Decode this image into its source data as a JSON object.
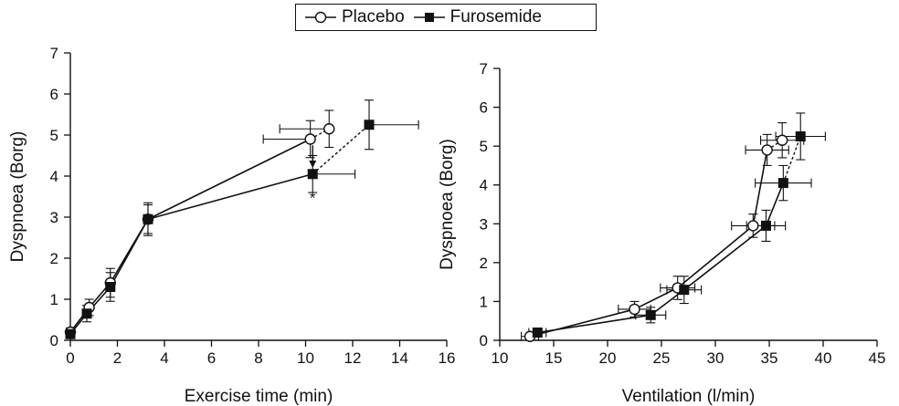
{
  "legend": [
    {
      "label": "Placebo",
      "marker": "open-circle"
    },
    {
      "label": "Furosemide",
      "marker": "filled-square"
    }
  ],
  "chart_data": [
    {
      "type": "line",
      "xlabel": "Exercise time (min)",
      "ylabel": "Dyspnoea (Borg)",
      "xlim": [
        0,
        16
      ],
      "ylim": [
        0,
        7
      ],
      "xticks": [
        0,
        2,
        4,
        6,
        8,
        10,
        12,
        14,
        16
      ],
      "yticks": [
        0,
        1,
        2,
        3,
        4,
        5,
        6,
        7
      ],
      "grid": false,
      "series": [
        {
          "name": "Placebo",
          "marker": "circle",
          "fill": "#ffffff",
          "points": [
            {
              "x": 0,
              "y": 0.2,
              "yerr": 0.1
            },
            {
              "x": 0.8,
              "y": 0.8,
              "yerr": 0.2
            },
            {
              "x": 1.7,
              "y": 1.4,
              "yerr": 0.35
            },
            {
              "x": 3.3,
              "y": 2.95,
              "yerr": 0.35
            },
            {
              "x": 10.2,
              "y": 4.9,
              "yerr": 0.45,
              "xerr_left": 2.0
            },
            {
              "x": 11.0,
              "y": 5.15,
              "yerr": 0.45,
              "xerr_left": 2.1
            }
          ]
        },
        {
          "name": "Furosemide",
          "marker": "square",
          "fill": "#111111",
          "points": [
            {
              "x": 0,
              "y": 0.15,
              "yerr": 0.1
            },
            {
              "x": 0.7,
              "y": 0.65,
              "yerr": 0.2
            },
            {
              "x": 1.7,
              "y": 1.3,
              "yerr": 0.35
            },
            {
              "x": 3.3,
              "y": 2.95,
              "yerr": 0.4
            },
            {
              "x": 10.3,
              "y": 4.05,
              "yerr": 0.45,
              "xerr_right": 1.8
            },
            {
              "x": 12.7,
              "y": 5.25,
              "yerr": 0.6,
              "xerr_right": 2.1
            }
          ]
        }
      ],
      "solid_segment_count": 4,
      "annotations": [
        {
          "type": "arrow",
          "x": 10.3,
          "y_from": 4.75,
          "y_to": 4.2
        },
        {
          "type": "text",
          "text": "*",
          "x": 10.3,
          "y": 3.35
        }
      ]
    },
    {
      "type": "line",
      "xlabel": "Ventilation (l/min)",
      "ylabel": "Dyspnoea (Borg)",
      "xlim": [
        10,
        45
      ],
      "ylim": [
        0,
        7
      ],
      "xticks": [
        10,
        15,
        20,
        25,
        30,
        35,
        40,
        45
      ],
      "yticks": [
        0,
        1,
        2,
        3,
        4,
        5,
        6,
        7
      ],
      "grid": false,
      "series": [
        {
          "name": "Placebo",
          "marker": "circle",
          "fill": "#ffffff",
          "points": [
            {
              "x": 12.8,
              "y": 0.1,
              "xerr": 0.8
            },
            {
              "x": 22.5,
              "y": 0.8,
              "xerr": 1.5,
              "yerr": 0.2
            },
            {
              "x": 26.5,
              "y": 1.35,
              "xerr": 1.6,
              "yerr": 0.3
            },
            {
              "x": 33.5,
              "y": 2.95,
              "xerr": 2.0,
              "yerr": 0.3
            },
            {
              "x": 34.8,
              "y": 4.9,
              "xerr": 2.0,
              "yerr": 0.4
            },
            {
              "x": 36.2,
              "y": 5.15,
              "xerr": 2.0,
              "yerr": 0.45
            }
          ]
        },
        {
          "name": "Furosemide",
          "marker": "square",
          "fill": "#111111",
          "points": [
            {
              "x": 13.5,
              "y": 0.2,
              "xerr": 0.8
            },
            {
              "x": 24.0,
              "y": 0.65,
              "xerr": 1.4,
              "yerr": 0.2
            },
            {
              "x": 27.1,
              "y": 1.3,
              "xerr": 1.6,
              "yerr": 0.35
            },
            {
              "x": 34.7,
              "y": 2.95,
              "xerr": 1.8,
              "yerr": 0.4
            },
            {
              "x": 36.3,
              "y": 4.05,
              "xerr": 2.6,
              "yerr": 0.45
            },
            {
              "x": 37.9,
              "y": 5.25,
              "xerr": 2.3,
              "yerr": 0.6
            }
          ]
        }
      ],
      "solid_segment_count": 4,
      "annotations": []
    }
  ]
}
